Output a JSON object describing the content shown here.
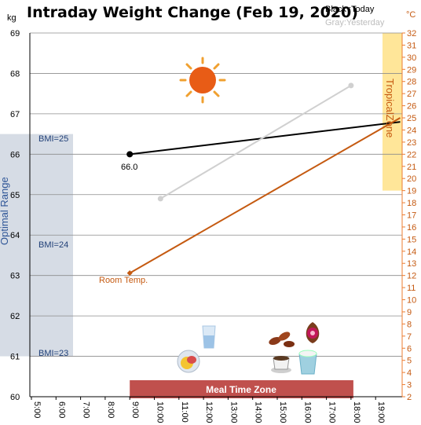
{
  "title": "Intraday Weight Change (Feb 19, 2020)",
  "legend": {
    "today": "Black :Today",
    "yesterday": "Gray:Yesterday"
  },
  "units": {
    "left": "kg",
    "right": "°C"
  },
  "annotations": {
    "optimal_range": "Optimal Range",
    "tropical_zone": "TropicalZone",
    "meal_time_zone": "Meal Time Zone",
    "room_temp": "Room Temp.",
    "bmi": [
      "BMI=25",
      "BMI=24",
      "BMI=23"
    ],
    "today_value_label": "66.0"
  },
  "colors": {
    "today": "#000000",
    "yesterday": "#d0d0d0",
    "room_temp": "#c55a11",
    "optimal_band": "#d6dce5",
    "tropical_band": "#ffe699",
    "meal_band": "#c0504d",
    "axis_right": "#ed7d31"
  },
  "icons": [
    "sun-icon",
    "water-glass-icon",
    "meal-plate-icon",
    "dates-snack-icon",
    "fig-icon",
    "coffee-cup-icon",
    "yogurt-cup-icon"
  ],
  "chart_data": {
    "type": "line",
    "title": "Intraday Weight Change (Feb 19, 2020)",
    "x_label": "",
    "x_ticks": [
      "5:00",
      "6:00",
      "7:00",
      "8:00",
      "9:00",
      "10:00",
      "11:00",
      "12:00",
      "13:00",
      "14:00",
      "15:00",
      "16:00",
      "17:00",
      "18:00",
      "19:00"
    ],
    "y_left": {
      "label": "kg",
      "ylim": [
        60,
        69
      ],
      "ticks": [
        "60",
        "61",
        "62",
        "63",
        "64",
        "65",
        "66",
        "67",
        "68",
        "69"
      ]
    },
    "y_right": {
      "label": "°C",
      "ylim": [
        2,
        32
      ],
      "ticks": [
        "2",
        "3",
        "4",
        "5",
        "6",
        "7",
        "8",
        "9",
        "10",
        "11",
        "12",
        "13",
        "14",
        "15",
        "16",
        "17",
        "18",
        "19",
        "20",
        "21",
        "22",
        "23",
        "24",
        "25",
        "26",
        "27",
        "28",
        "29",
        "30",
        "31",
        "32"
      ]
    },
    "series": [
      {
        "name": "Today",
        "axis": "left",
        "color": "#000000",
        "x": [
          "9:00",
          "20:00"
        ],
        "y": [
          66.0,
          66.8
        ]
      },
      {
        "name": "Yesterday",
        "axis": "left",
        "color": "#d0d0d0",
        "x": [
          "10:15",
          "18:00"
        ],
        "y": [
          64.9,
          67.7
        ]
      },
      {
        "name": "Room Temp.",
        "axis": "right",
        "color": "#c55a11",
        "x": [
          "9:00",
          "20:00"
        ],
        "y": [
          12.2,
          25.0
        ]
      }
    ],
    "bands": [
      {
        "name": "Optimal Range",
        "axis": "left",
        "y_range": [
          61,
          66.5
        ]
      },
      {
        "name": "TropicalZone",
        "axis": "right",
        "y_range": [
          19,
          32
        ]
      },
      {
        "name": "Meal Time Zone",
        "x_range": [
          "9:00",
          "18:00"
        ]
      }
    ],
    "reference_lines": [
      {
        "label": "BMI=25",
        "y": 66.5
      },
      {
        "label": "BMI=24",
        "y": 63.9
      },
      {
        "label": "BMI=23",
        "y": 61.1
      }
    ],
    "grid": true
  }
}
